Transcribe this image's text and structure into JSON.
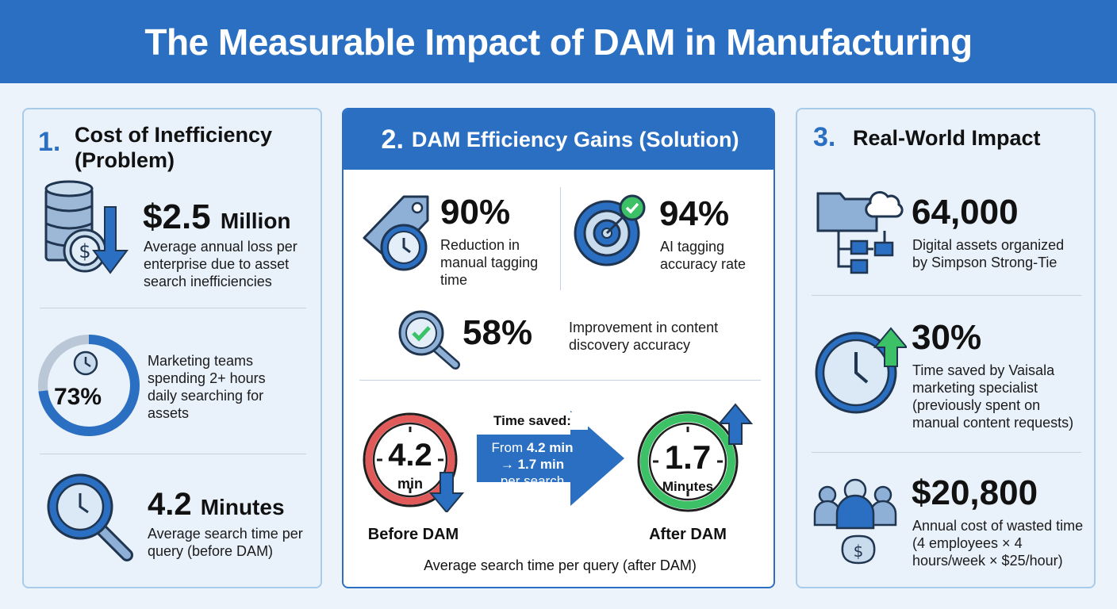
{
  "title": "The Measurable Impact of DAM in Manufacturing",
  "colors": {
    "primary": "#2b6fc2",
    "before_ring": "#e05a5a",
    "after_ring": "#3cc167"
  },
  "panel1": {
    "number": "1.",
    "title_line1": "Cost of Inefficiency",
    "title_line2": "(Problem)",
    "item1": {
      "icon": "database-dollar-down-icon",
      "value": "$2.5",
      "unit": "Million",
      "desc": "Average annual loss per enterprise due to asset search inefficiencies"
    },
    "item2": {
      "icon": "clock-donut-icon",
      "value": "73%",
      "progress_percent": 73,
      "desc": "Marketing teams spending 2+ hours daily searching for assets"
    },
    "item3": {
      "icon": "magnifier-clock-icon",
      "value": "4.2",
      "unit": "Minutes",
      "desc": "Average search time per query (before DAM)"
    }
  },
  "panel2": {
    "number": "2.",
    "title": "DAM Efficiency Gains (Solution)",
    "item1": {
      "icon": "tag-clock-icon",
      "value": "90%",
      "desc": "Reduction in manual tagging time"
    },
    "item2": {
      "icon": "target-check-icon",
      "value": "94%",
      "desc": "AI tagging accuracy rate"
    },
    "item3": {
      "icon": "magnifier-check-icon",
      "value": "58%",
      "desc": "Improvement in content discovery accuracy"
    },
    "comparison": {
      "before_value": "4.2",
      "before_unit": "min",
      "before_label": "Before DAM",
      "saved_title": "Time saved:",
      "saved_from": "From ",
      "saved_from_value": "4.2 min",
      "saved_to": "→ 1.7 min",
      "saved_per": "per search",
      "after_value": "1.7",
      "after_unit": "Minutes",
      "after_label": "After DAM",
      "caption": "Average search time per query (after DAM)"
    }
  },
  "panel3": {
    "number": "3.",
    "title": "Real-World Impact",
    "item1": {
      "icon": "folder-cloud-tree-icon",
      "value": "64,000",
      "desc": "Digital assets organized by Simpson Strong-Tie"
    },
    "item2": {
      "icon": "clock-arrow-up-icon",
      "value": "30%",
      "desc": "Time saved by Vaisala marketing specialist (previously spent on manual content requests)"
    },
    "item3": {
      "icon": "team-money-icon",
      "value": "$20,800",
      "desc": "Annual cost of wasted time (4 employees × 4 hours/week × $25/hour)"
    }
  }
}
